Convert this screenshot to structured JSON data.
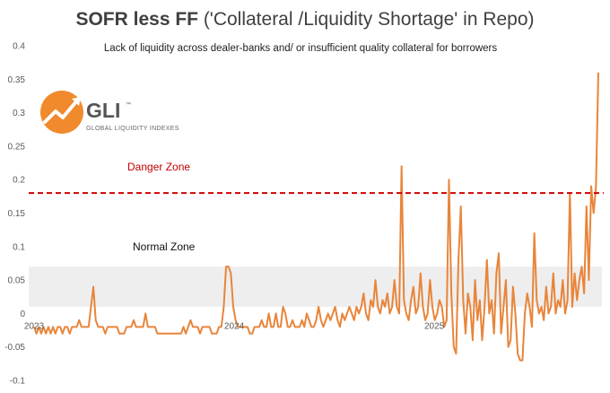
{
  "chart_data": {
    "type": "line",
    "title_bold": "SOFR less FF",
    "title_rest": " ('Collateral /Liquidity Shortage' in Repo)",
    "subtitle": "Lack of liquidity across dealer-banks and/ or insufficient quality collateral for borrowers",
    "ylim": [
      -0.1,
      0.4
    ],
    "yticks": [
      "0.4",
      "0.35",
      "0.3",
      "0.25",
      "0.2",
      "0.15",
      "0.1",
      "0.05",
      "0",
      "-0.05",
      "-0.1"
    ],
    "xtick_labels": [
      "2023",
      "2024",
      "2025"
    ],
    "danger_threshold": 0.18,
    "danger_label": "Danger Zone",
    "normal_zone": [
      0.01,
      0.07
    ],
    "normal_label": "Normal Zone",
    "grid": false,
    "line_color": "#e8853a",
    "danger_color": "#d00000",
    "normal_zone_color": "#eeeeee",
    "logo": {
      "name": "GLI",
      "tm": "™",
      "tagline": "GLOBAL LIQUIDITY INDEXES"
    },
    "series": [
      {
        "x_start_year": 2023.0,
        "x_end_year": 2025.82,
        "values": [
          -0.02,
          -0.03,
          -0.02,
          -0.03,
          -0.02,
          -0.03,
          -0.02,
          -0.03,
          -0.02,
          -0.03,
          -0.02,
          -0.02,
          -0.03,
          -0.02,
          -0.02,
          -0.03,
          -0.02,
          -0.02,
          -0.02,
          -0.01,
          -0.02,
          -0.02,
          -0.02,
          -0.02,
          0.01,
          0.04,
          -0.01,
          -0.02,
          -0.02,
          -0.02,
          -0.03,
          -0.02,
          -0.02,
          -0.02,
          -0.02,
          -0.02,
          -0.03,
          -0.03,
          -0.03,
          -0.02,
          -0.02,
          -0.02,
          -0.01,
          -0.02,
          -0.02,
          -0.02,
          -0.02,
          0.0,
          -0.02,
          -0.02,
          -0.02,
          -0.02,
          -0.03,
          -0.03,
          -0.03,
          -0.03,
          -0.03,
          -0.03,
          -0.03,
          -0.03,
          -0.03,
          -0.03,
          -0.03,
          -0.02,
          -0.03,
          -0.02,
          -0.01,
          -0.02,
          -0.02,
          -0.02,
          -0.03,
          -0.02,
          -0.02,
          -0.02,
          -0.02,
          -0.03,
          -0.03,
          -0.03,
          -0.02,
          -0.02,
          0.01,
          0.07,
          0.07,
          0.06,
          0.01,
          -0.01,
          -0.02,
          -0.02,
          -0.02,
          -0.02,
          -0.02,
          -0.03,
          -0.03,
          -0.02,
          -0.02,
          -0.02,
          -0.01,
          -0.02,
          -0.02,
          0.0,
          -0.02,
          -0.02,
          0.0,
          -0.02,
          -0.02,
          0.01,
          0.0,
          -0.02,
          -0.02,
          -0.01,
          -0.02,
          -0.02,
          -0.02,
          -0.01,
          -0.02,
          0.0,
          -0.01,
          -0.02,
          -0.02,
          -0.01,
          0.01,
          -0.01,
          -0.02,
          -0.01,
          0.0,
          -0.01,
          0.0,
          0.01,
          -0.01,
          -0.02,
          0.0,
          -0.01,
          0.0,
          0.01,
          0.0,
          -0.01,
          0.01,
          0.0,
          0.01,
          0.03,
          0.0,
          -0.01,
          0.02,
          0.01,
          0.05,
          0.01,
          0.0,
          0.02,
          0.01,
          0.03,
          0.0,
          0.01,
          0.05,
          0.01,
          0.0,
          0.22,
          0.02,
          0.0,
          -0.01,
          0.02,
          0.04,
          0.0,
          0.01,
          0.06,
          0.01,
          -0.01,
          0.0,
          0.05,
          0.01,
          -0.01,
          0.0,
          0.02,
          0.01,
          -0.02,
          -0.01,
          0.2,
          0.03,
          -0.05,
          -0.06,
          0.08,
          0.16,
          0.02,
          -0.03,
          0.03,
          0.01,
          -0.04,
          0.05,
          -0.01,
          0.02,
          -0.04,
          0.01,
          0.08,
          0.0,
          0.02,
          -0.03,
          0.06,
          0.09,
          -0.03,
          0.01,
          0.05,
          -0.05,
          -0.04,
          0.04,
          0.0,
          -0.06,
          -0.07,
          -0.07,
          0.0,
          0.03,
          0.01,
          -0.02,
          0.12,
          0.02,
          0.0,
          0.01,
          -0.01,
          0.04,
          0.0,
          0.01,
          0.06,
          0.0,
          0.02,
          0.01,
          0.05,
          0.0,
          0.02,
          0.18,
          0.01,
          0.06,
          0.02,
          0.05,
          0.07,
          0.03,
          0.16,
          0.05,
          0.19,
          0.15,
          0.19,
          0.36
        ]
      }
    ]
  }
}
